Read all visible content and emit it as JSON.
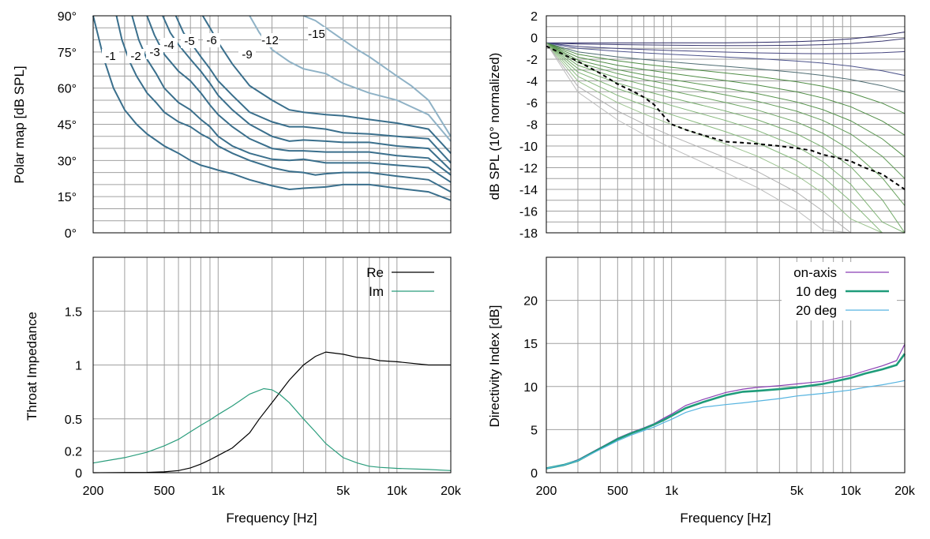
{
  "chart_data": [
    {
      "id": "polar_map",
      "type": "line",
      "title": "",
      "xlabel": "",
      "ylabel": "Polar map [dB SPL]",
      "x_scale": "log",
      "xlim": [
        200,
        20000
      ],
      "ylim": [
        0,
        90
      ],
      "x_ticks": [],
      "y_ticks": [
        0,
        15,
        30,
        45,
        60,
        75,
        90
      ],
      "y_tick_labels": [
        "0°",
        "15°",
        "30°",
        "45°",
        "60°",
        "75°",
        "90°"
      ],
      "grid": true,
      "contour_labels": [
        "-1",
        "-2",
        "-3",
        "-4",
        "-5",
        "-6",
        "-9",
        "-12",
        "-15"
      ],
      "colors": {
        "dark": "#3a6f8c",
        "light": "#8fb2c6"
      },
      "series": [
        {
          "level": -1,
          "x": [
            200,
            230,
            260,
            300,
            350,
            400,
            500,
            600,
            700,
            800,
            900,
            1000,
            1200,
            1500,
            2000,
            2500,
            3000,
            4000,
            5000,
            7000,
            10000,
            15000,
            20000
          ],
          "y": [
            90,
            72,
            60,
            51,
            45,
            41,
            36,
            33,
            30,
            28,
            27,
            26,
            24.5,
            22,
            19.5,
            18,
            18.5,
            19,
            20,
            20,
            18.5,
            17,
            13.5
          ]
        },
        {
          "level": -2,
          "x": [
            270,
            290,
            320,
            350,
            400,
            450,
            500,
            600,
            700,
            800,
            900,
            1000,
            1200,
            1500,
            2000,
            2500,
            3000,
            3500,
            4000,
            5000,
            7000,
            10000,
            15000,
            20000
          ],
          "y": [
            90,
            80,
            71,
            65,
            58,
            54,
            50,
            46,
            44,
            41,
            39,
            36,
            33,
            30,
            27,
            25.5,
            25,
            24,
            24.5,
            25,
            25,
            23.5,
            22,
            17
          ]
        },
        {
          "level": -3,
          "x": [
            330,
            360,
            400,
            450,
            500,
            600,
            700,
            800,
            900,
            1000,
            1200,
            1500,
            2000,
            2500,
            3000,
            4000,
            5000,
            7000,
            10000,
            15000,
            20000
          ],
          "y": [
            90,
            80,
            72,
            66,
            60,
            54,
            51,
            47,
            44,
            40,
            36,
            33,
            30.5,
            30,
            30.5,
            29,
            29,
            29,
            28,
            27,
            21
          ]
        },
        {
          "level": -4,
          "x": [
            400,
            440,
            500,
            600,
            700,
            800,
            900,
            1000,
            1200,
            1500,
            2000,
            2500,
            3000,
            4000,
            5000,
            7000,
            10000,
            15000,
            20000
          ],
          "y": [
            90,
            82,
            74,
            67,
            63,
            58,
            53,
            49,
            44,
            39,
            35,
            34,
            34,
            33.5,
            33.5,
            33.5,
            32,
            31,
            24
          ]
        },
        {
          "level": -5,
          "x": [
            490,
            540,
            600,
            700,
            800,
            900,
            1000,
            1200,
            1500,
            2000,
            2500,
            3000,
            4000,
            5000,
            7000,
            10000,
            15000,
            20000
          ],
          "y": [
            90,
            83,
            78,
            72,
            67,
            62,
            57,
            51,
            45,
            40,
            38,
            38.5,
            38,
            37.5,
            37.5,
            36,
            35,
            26
          ]
        },
        {
          "level": -6,
          "x": [
            580,
            640,
            700,
            800,
            900,
            1000,
            1200,
            1500,
            2000,
            2500,
            3000,
            4000,
            5000,
            7000,
            10000,
            15000,
            20000
          ],
          "y": [
            90,
            83,
            79,
            73,
            68,
            63,
            57,
            50,
            46,
            44,
            44,
            43,
            41.5,
            41,
            40,
            39,
            29
          ]
        },
        {
          "level": -9,
          "x": [
            820,
            900,
            1000,
            1200,
            1500,
            2000,
            2500,
            3000,
            4000,
            5000,
            7000,
            10000,
            15000,
            20000
          ],
          "y": [
            90,
            85,
            79,
            70,
            61,
            55,
            51,
            50,
            49,
            48.5,
            47,
            45.5,
            43,
            33
          ]
        },
        {
          "level": -12,
          "x": [
            1500,
            1700,
            2000,
            2500,
            3000,
            4000,
            5000,
            7000,
            10000,
            15000,
            20000
          ],
          "y": [
            90,
            83,
            76,
            71,
            68,
            66,
            62,
            58,
            55,
            49,
            38
          ]
        },
        {
          "level": -15,
          "x": [
            3000,
            3500,
            4000,
            5000,
            6000,
            7000,
            8000,
            10000,
            12000,
            15000,
            20000
          ],
          "y": [
            90,
            88,
            85,
            80,
            76,
            73,
            70,
            65,
            61,
            55,
            40
          ]
        }
      ]
    },
    {
      "id": "normalized_spl",
      "type": "line",
      "title": "",
      "xlabel": "",
      "ylabel": "dB SPL (10° normalized)",
      "x_scale": "log",
      "xlim": [
        200,
        20000
      ],
      "ylim": [
        -18,
        2
      ],
      "y_ticks": [
        2,
        0,
        -2,
        -4,
        -6,
        -8,
        -10,
        -12,
        -14,
        -16,
        -18
      ],
      "grid": true,
      "colors": {
        "blue_dark": "#2c2a66",
        "blue_mid": "#4a4a8c",
        "green": "#4e8c44",
        "green_light": "#8cbf80",
        "grey": "#b0b0b0",
        "dashed": "#000000"
      },
      "dashed_series": {
        "x": [
          200,
          300,
          400,
          500,
          600,
          700,
          800,
          900,
          1000,
          1200,
          1500,
          2000,
          2500,
          3000,
          4000,
          5000,
          6000,
          7000,
          8000,
          10000,
          12000,
          15000,
          20000
        ],
        "y": [
          -0.8,
          -2.2,
          -3.3,
          -4.3,
          -4.9,
          -5.5,
          -6.2,
          -7.2,
          -8,
          -8.5,
          -9,
          -9.6,
          -9.7,
          -9.8,
          -10,
          -10.2,
          -10.4,
          -10.8,
          -11,
          -11.4,
          -12,
          -12.6,
          -14
        ]
      },
      "fan_series": [
        {
          "level": 0.0,
          "color": "#2c2a66",
          "end": 1.0
        },
        {
          "level": -0.3,
          "color": "#3a3870",
          "end": 0.4
        },
        {
          "level": -1.0,
          "color": "#464680",
          "end": -0.8
        },
        {
          "level": -1.5,
          "color": "#4d548c",
          "end": -3.0
        },
        {
          "level": -2.5,
          "color": "#4e6c72",
          "end": -4.5
        },
        {
          "level": -3.2,
          "color": "#4e8c44",
          "end": -6.5
        },
        {
          "level": -4.0,
          "color": "#4e8c44",
          "end": -8.5
        },
        {
          "level": -4.8,
          "color": "#58944e",
          "end": -10.5
        },
        {
          "level": -5.5,
          "color": "#629c58",
          "end": -12.5
        },
        {
          "level": -6.3,
          "color": "#6ca462",
          "end": -15.0
        },
        {
          "level": -7.2,
          "color": "#76ac6c",
          "end": -17.5
        },
        {
          "level": -8.2,
          "color": "#80b476",
          "end": -20.0
        },
        {
          "level": -9.4,
          "color": "#8abb80",
          "end": -22.0
        },
        {
          "level": -10.7,
          "color": "#9cc390",
          "end": -24.0
        },
        {
          "level": -12.2,
          "color": "#b0b0b0",
          "end": -26.0
        },
        {
          "level": -13.8,
          "color": "#bdbdbd",
          "end": -28.0
        }
      ]
    },
    {
      "id": "throat_impedance",
      "type": "line",
      "title": "",
      "xlabel": "Frequency [Hz]",
      "ylabel": "Throat Impedance",
      "x_scale": "log",
      "xlim": [
        200,
        20000
      ],
      "ylim": [
        0,
        2
      ],
      "x_ticks": [
        200,
        500,
        1000,
        5000,
        10000,
        20000
      ],
      "x_tick_labels": [
        "200",
        "500",
        "1k",
        "5k",
        "10k",
        "20k"
      ],
      "y_ticks": [
        0,
        0.2,
        0.5,
        1,
        1.5
      ],
      "y_tick_labels": [
        "0",
        "0.2",
        "0.5",
        "1",
        "1.5"
      ],
      "grid": true,
      "legend_position": "top-right",
      "series": [
        {
          "name": "Re",
          "color": "#000000",
          "x": [
            200,
            400,
            500,
            600,
            700,
            800,
            900,
            1000,
            1200,
            1500,
            1700,
            2000,
            2500,
            3000,
            3500,
            4000,
            5000,
            6000,
            7000,
            8000,
            10000,
            15000,
            20000
          ],
          "y": [
            0,
            0.003,
            0.008,
            0.02,
            0.045,
            0.08,
            0.12,
            0.16,
            0.23,
            0.37,
            0.5,
            0.65,
            0.86,
            1.0,
            1.08,
            1.12,
            1.1,
            1.07,
            1.06,
            1.04,
            1.03,
            1.0,
            1.0
          ]
        },
        {
          "name": "Im",
          "color": "#2a9d7c",
          "x": [
            200,
            300,
            400,
            500,
            600,
            700,
            800,
            900,
            1000,
            1200,
            1500,
            1800,
            2000,
            2200,
            2500,
            3000,
            3500,
            4000,
            5000,
            6000,
            7000,
            8000,
            10000,
            15000,
            20000
          ],
          "y": [
            0.09,
            0.14,
            0.19,
            0.25,
            0.31,
            0.38,
            0.44,
            0.49,
            0.54,
            0.62,
            0.73,
            0.78,
            0.77,
            0.73,
            0.65,
            0.5,
            0.38,
            0.27,
            0.14,
            0.09,
            0.06,
            0.05,
            0.04,
            0.03,
            0.02
          ]
        }
      ]
    },
    {
      "id": "directivity_index",
      "type": "line",
      "title": "",
      "xlabel": "Frequency [Hz]",
      "ylabel": "Directivity Index [dB]",
      "x_scale": "log",
      "xlim": [
        200,
        20000
      ],
      "ylim": [
        0,
        25
      ],
      "x_ticks": [
        200,
        500,
        1000,
        5000,
        10000,
        20000
      ],
      "x_tick_labels": [
        "200",
        "500",
        "1k",
        "5k",
        "10k",
        "20k"
      ],
      "y_ticks": [
        0,
        5,
        10,
        15,
        20
      ],
      "y_tick_labels": [
        "0",
        "5",
        "10",
        "15",
        "20"
      ],
      "grid": true,
      "legend_position": "top-right",
      "series": [
        {
          "name": "on-axis",
          "color": "#8a3fb3",
          "width": 1.2,
          "x": [
            200,
            250,
            300,
            400,
            500,
            600,
            700,
            800,
            900,
            1000,
            1200,
            1500,
            2000,
            2500,
            3000,
            4000,
            5000,
            7000,
            10000,
            12000,
            15000,
            18000,
            20000
          ],
          "y": [
            0.5,
            0.9,
            1.5,
            2.9,
            4.0,
            4.7,
            5.2,
            5.7,
            6.3,
            6.8,
            7.8,
            8.5,
            9.3,
            9.7,
            9.9,
            10.1,
            10.3,
            10.6,
            11.3,
            11.8,
            12.4,
            13.0,
            14.9
          ]
        },
        {
          "name": "10 deg",
          "color": "#1f9c7a",
          "width": 2.6,
          "x": [
            200,
            250,
            300,
            400,
            500,
            600,
            700,
            800,
            900,
            1000,
            1200,
            1500,
            2000,
            2500,
            3000,
            4000,
            5000,
            7000,
            10000,
            12000,
            15000,
            18000,
            20000
          ],
          "y": [
            0.5,
            0.9,
            1.4,
            2.8,
            3.9,
            4.6,
            5.1,
            5.6,
            6.1,
            6.6,
            7.5,
            8.2,
            9.0,
            9.4,
            9.5,
            9.7,
            9.9,
            10.3,
            11.0,
            11.5,
            12.0,
            12.5,
            13.8
          ]
        },
        {
          "name": "20 deg",
          "color": "#56b4e0",
          "width": 1.2,
          "x": [
            200,
            250,
            300,
            400,
            500,
            600,
            700,
            800,
            900,
            1000,
            1200,
            1500,
            2000,
            2500,
            3000,
            4000,
            5000,
            7000,
            10000,
            12000,
            15000,
            18000,
            20000
          ],
          "y": [
            0.5,
            0.9,
            1.4,
            2.7,
            3.7,
            4.4,
            4.9,
            5.3,
            5.8,
            6.2,
            7.0,
            7.6,
            7.9,
            8.1,
            8.3,
            8.6,
            8.9,
            9.2,
            9.6,
            9.9,
            10.2,
            10.5,
            10.7
          ]
        }
      ]
    }
  ]
}
